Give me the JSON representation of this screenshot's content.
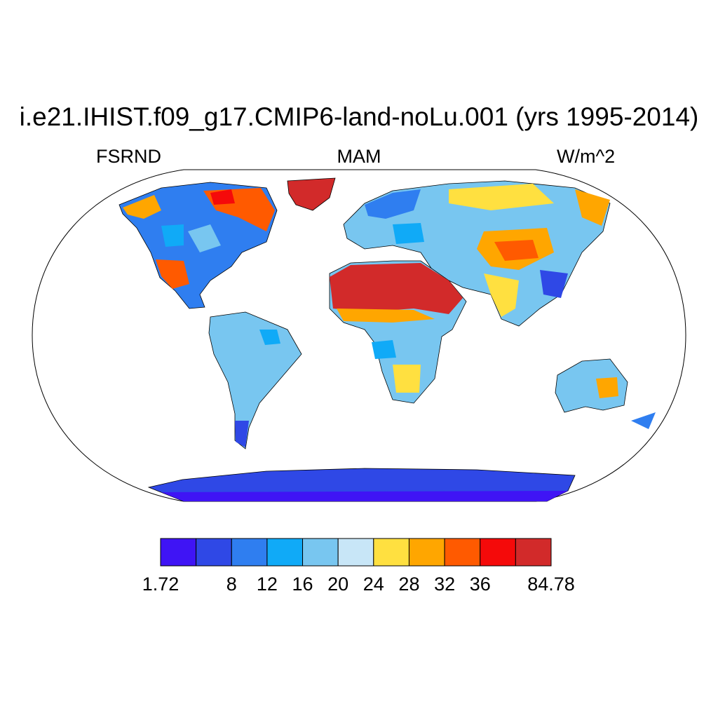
{
  "title": "i.e21.IHIST.f09_g17.CMIP6-land-noLu.001 (yrs 1995-2014)",
  "left_label": "FSRND",
  "center_label": "MAM",
  "right_label": "W/m^2",
  "map": {
    "projection": "Robinson",
    "variable": "FSRND",
    "season": "MAM",
    "units": "W/m^2",
    "ocean_fill": "none"
  },
  "legend": {
    "colors": [
      "#3f14f5",
      "#2f48e6",
      "#2f7ef0",
      "#10aaf7",
      "#78c6f0",
      "#c8e6f7",
      "#ffe040",
      "#ffa600",
      "#ff5a00",
      "#f50a0a",
      "#d22a2a"
    ],
    "labels": [
      "1.72",
      "",
      "8",
      "12",
      "16",
      "20",
      "24",
      "28",
      "32",
      "36",
      "",
      "84.78"
    ]
  }
}
